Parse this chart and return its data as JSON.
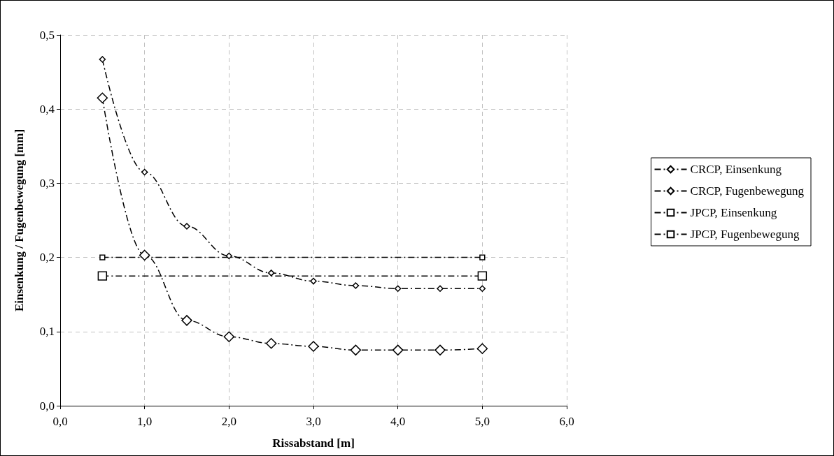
{
  "chart_data": {
    "type": "line",
    "xlabel": "Rissabstand [m]",
    "ylabel": "Einsenkung / Fugenbewegung [mm]",
    "xlim": [
      0,
      6
    ],
    "xticks": [
      {
        "value": 0,
        "label": "0,0"
      },
      {
        "value": 1,
        "label": "1,0"
      },
      {
        "value": 2,
        "label": "2,0"
      },
      {
        "value": 3,
        "label": "3,0"
      },
      {
        "value": 4,
        "label": "4,0"
      },
      {
        "value": 5,
        "label": "5,0"
      },
      {
        "value": 6,
        "label": "6,0"
      }
    ],
    "ylim": [
      0,
      0.5
    ],
    "yticks": [
      {
        "value": 0,
        "label": "0,0"
      },
      {
        "value": 0.1,
        "label": "0,1"
      },
      {
        "value": 0.2,
        "label": "0,2"
      },
      {
        "value": 0.3,
        "label": "0,3"
      },
      {
        "value": 0.4,
        "label": "0,4"
      },
      {
        "value": 0.5,
        "label": "0,5"
      }
    ],
    "grid": true,
    "legend": "right",
    "line_style": "dashed",
    "series": [
      {
        "name": "CRCP, Einsenkung",
        "color": "#000000",
        "marker": "diamond",
        "x": [
          0.5,
          1,
          1.5,
          2,
          2.5,
          3,
          3.5,
          4,
          4.5,
          5
        ],
        "values": [
          0.467,
          0.315,
          0.242,
          0.202,
          0.179,
          0.168,
          0.162,
          0.158,
          0.158,
          0.158
        ]
      },
      {
        "name": "CRCP, Fugenbewegung",
        "color": "#000000",
        "marker": "diamond",
        "x": [
          0.5,
          1,
          1.5,
          2,
          2.5,
          3,
          3.5,
          4,
          4.5,
          5
        ],
        "values": [
          0.415,
          0.203,
          0.115,
          0.093,
          0.084,
          0.08,
          0.075,
          0.075,
          0.075,
          0.077
        ]
      },
      {
        "name": "JPCP, Einsenkung",
        "color": "#000000",
        "marker": "square",
        "x": [
          0.5,
          5
        ],
        "values": [
          0.2,
          0.2
        ]
      },
      {
        "name": "JPCP, Fugenbewegung",
        "color": "#000000",
        "marker": "square",
        "x": [
          0.5,
          5
        ],
        "values": [
          0.175,
          0.175
        ]
      }
    ]
  }
}
